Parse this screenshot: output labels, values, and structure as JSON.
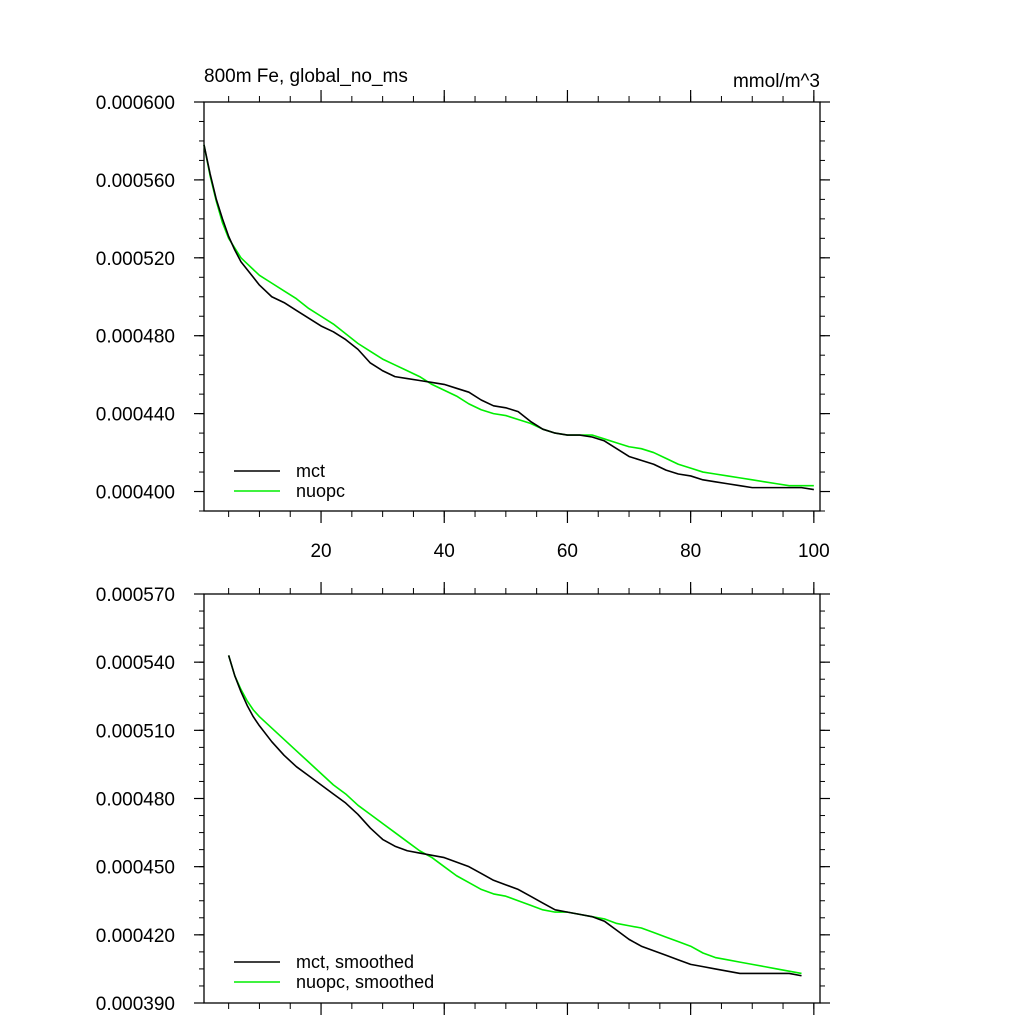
{
  "chart_data": [
    {
      "type": "line",
      "title": "800m Fe, global_no_ms",
      "units": "mmol/m^3",
      "xlabel": "",
      "ylabel": "",
      "xlim": [
        1,
        101
      ],
      "ylim": [
        0.00039,
        0.0006
      ],
      "x_ticks": [
        20,
        40,
        60,
        80,
        100
      ],
      "x_tick_labels": [
        "20",
        "40",
        "60",
        "80",
        "100"
      ],
      "y_ticks": [
        0.0004,
        0.00044,
        0.00048,
        0.00052,
        0.00056,
        0.0006
      ],
      "y_tick_labels": [
        "0.000400",
        "0.000440",
        "0.000480",
        "0.000520",
        "0.000560",
        "0.000600"
      ],
      "legend": {
        "position": "bottom-left",
        "entries": [
          "mct",
          "nuopc"
        ]
      },
      "series": [
        {
          "name": "mct",
          "color": "#000000",
          "x": [
            1,
            2,
            3,
            4,
            5,
            6,
            7,
            8,
            9,
            10,
            12,
            14,
            16,
            18,
            20,
            22,
            24,
            26,
            28,
            30,
            32,
            34,
            36,
            38,
            40,
            42,
            44,
            46,
            48,
            50,
            52,
            54,
            56,
            58,
            60,
            62,
            64,
            66,
            68,
            70,
            72,
            74,
            76,
            78,
            80,
            82,
            84,
            86,
            88,
            90,
            92,
            94,
            96,
            98,
            100
          ],
          "values": [
            0.000578,
            0.000563,
            0.00055,
            0.00054,
            0.000531,
            0.000524,
            0.000518,
            0.000514,
            0.00051,
            0.000506,
            0.0005,
            0.000497,
            0.000493,
            0.000489,
            0.000485,
            0.000482,
            0.000478,
            0.000473,
            0.000466,
            0.000462,
            0.000459,
            0.000458,
            0.000457,
            0.000456,
            0.000455,
            0.000453,
            0.000451,
            0.000447,
            0.000444,
            0.000443,
            0.000441,
            0.000436,
            0.000432,
            0.00043,
            0.000429,
            0.000429,
            0.000428,
            0.000426,
            0.000422,
            0.000418,
            0.000416,
            0.000414,
            0.000411,
            0.000409,
            0.000408,
            0.000406,
            0.000405,
            0.000404,
            0.000403,
            0.000402,
            0.000402,
            0.000402,
            0.000402,
            0.000402,
            0.000401
          ]
        },
        {
          "name": "nuopc",
          "color": "#00ee00",
          "x": [
            1,
            2,
            3,
            4,
            5,
            6,
            7,
            8,
            9,
            10,
            12,
            14,
            16,
            18,
            20,
            22,
            24,
            26,
            28,
            30,
            32,
            34,
            36,
            38,
            40,
            42,
            44,
            46,
            48,
            50,
            52,
            54,
            56,
            58,
            60,
            62,
            64,
            66,
            68,
            70,
            72,
            74,
            76,
            78,
            80,
            82,
            84,
            86,
            88,
            90,
            92,
            94,
            96,
            98,
            100
          ],
          "values": [
            0.000578,
            0.000562,
            0.000549,
            0.000538,
            0.00053,
            0.000525,
            0.00052,
            0.000517,
            0.000514,
            0.000511,
            0.000507,
            0.000503,
            0.000499,
            0.000494,
            0.00049,
            0.000486,
            0.000481,
            0.000476,
            0.000472,
            0.000468,
            0.000465,
            0.000462,
            0.000459,
            0.000455,
            0.000452,
            0.000449,
            0.000445,
            0.000442,
            0.00044,
            0.000439,
            0.000437,
            0.000435,
            0.000432,
            0.00043,
            0.000429,
            0.000429,
            0.000429,
            0.000427,
            0.000425,
            0.000423,
            0.000422,
            0.00042,
            0.000417,
            0.000414,
            0.000412,
            0.00041,
            0.000409,
            0.000408,
            0.000407,
            0.000406,
            0.000405,
            0.000404,
            0.000403,
            0.000403,
            0.000403
          ]
        }
      ]
    },
    {
      "type": "line",
      "title": "",
      "xlabel": "",
      "ylabel": "",
      "xlim": [
        1,
        101
      ],
      "ylim": [
        0.00039,
        0.00057
      ],
      "x_ticks": [
        20,
        40,
        60,
        80,
        100
      ],
      "x_tick_labels": [],
      "y_ticks": [
        0.00039,
        0.00042,
        0.00045,
        0.00048,
        0.00051,
        0.00054,
        0.00057
      ],
      "y_tick_labels": [
        "0.000390",
        "0.000420",
        "0.000450",
        "0.000480",
        "0.000510",
        "0.000540",
        "0.000570"
      ],
      "legend": {
        "position": "bottom-left",
        "entries": [
          "mct, smoothed",
          "nuopc, smoothed"
        ]
      },
      "series": [
        {
          "name": "mct, smoothed",
          "color": "#000000",
          "x": [
            5,
            6,
            7,
            8,
            9,
            10,
            12,
            14,
            16,
            18,
            20,
            22,
            24,
            26,
            28,
            30,
            32,
            34,
            36,
            38,
            40,
            42,
            44,
            46,
            48,
            50,
            52,
            54,
            56,
            58,
            60,
            62,
            64,
            66,
            68,
            70,
            72,
            74,
            76,
            78,
            80,
            82,
            84,
            86,
            88,
            90,
            92,
            94,
            96,
            98
          ],
          "values": [
            0.000543,
            0.000534,
            0.000527,
            0.000521,
            0.000516,
            0.000512,
            0.000505,
            0.000499,
            0.000494,
            0.00049,
            0.000486,
            0.000482,
            0.000478,
            0.000473,
            0.000467,
            0.000462,
            0.000459,
            0.000457,
            0.000456,
            0.000455,
            0.000454,
            0.000452,
            0.00045,
            0.000447,
            0.000444,
            0.000442,
            0.00044,
            0.000437,
            0.000434,
            0.000431,
            0.00043,
            0.000429,
            0.000428,
            0.000426,
            0.000422,
            0.000418,
            0.000415,
            0.000413,
            0.000411,
            0.000409,
            0.000407,
            0.000406,
            0.000405,
            0.000404,
            0.000403,
            0.000403,
            0.000403,
            0.000403,
            0.000403,
            0.000402
          ]
        },
        {
          "name": "nuopc, smoothed",
          "color": "#00ee00",
          "x": [
            5,
            6,
            7,
            8,
            9,
            10,
            12,
            14,
            16,
            18,
            20,
            22,
            24,
            26,
            28,
            30,
            32,
            34,
            36,
            38,
            40,
            42,
            44,
            46,
            48,
            50,
            52,
            54,
            56,
            58,
            60,
            62,
            64,
            66,
            68,
            70,
            72,
            74,
            76,
            78,
            80,
            82,
            84,
            86,
            88,
            90,
            92,
            94,
            96,
            98
          ],
          "values": [
            0.000543,
            0.000534,
            0.000528,
            0.000523,
            0.000519,
            0.000516,
            0.000511,
            0.000506,
            0.000501,
            0.000496,
            0.000491,
            0.000486,
            0.000482,
            0.000477,
            0.000473,
            0.000469,
            0.000465,
            0.000461,
            0.000457,
            0.000454,
            0.00045,
            0.000446,
            0.000443,
            0.00044,
            0.000438,
            0.000437,
            0.000435,
            0.000433,
            0.000431,
            0.00043,
            0.00043,
            0.000429,
            0.000428,
            0.000427,
            0.000425,
            0.000424,
            0.000423,
            0.000421,
            0.000419,
            0.000417,
            0.000415,
            0.000412,
            0.00041,
            0.000409,
            0.000408,
            0.000407,
            0.000406,
            0.000405,
            0.000404,
            0.000403
          ]
        }
      ]
    }
  ]
}
